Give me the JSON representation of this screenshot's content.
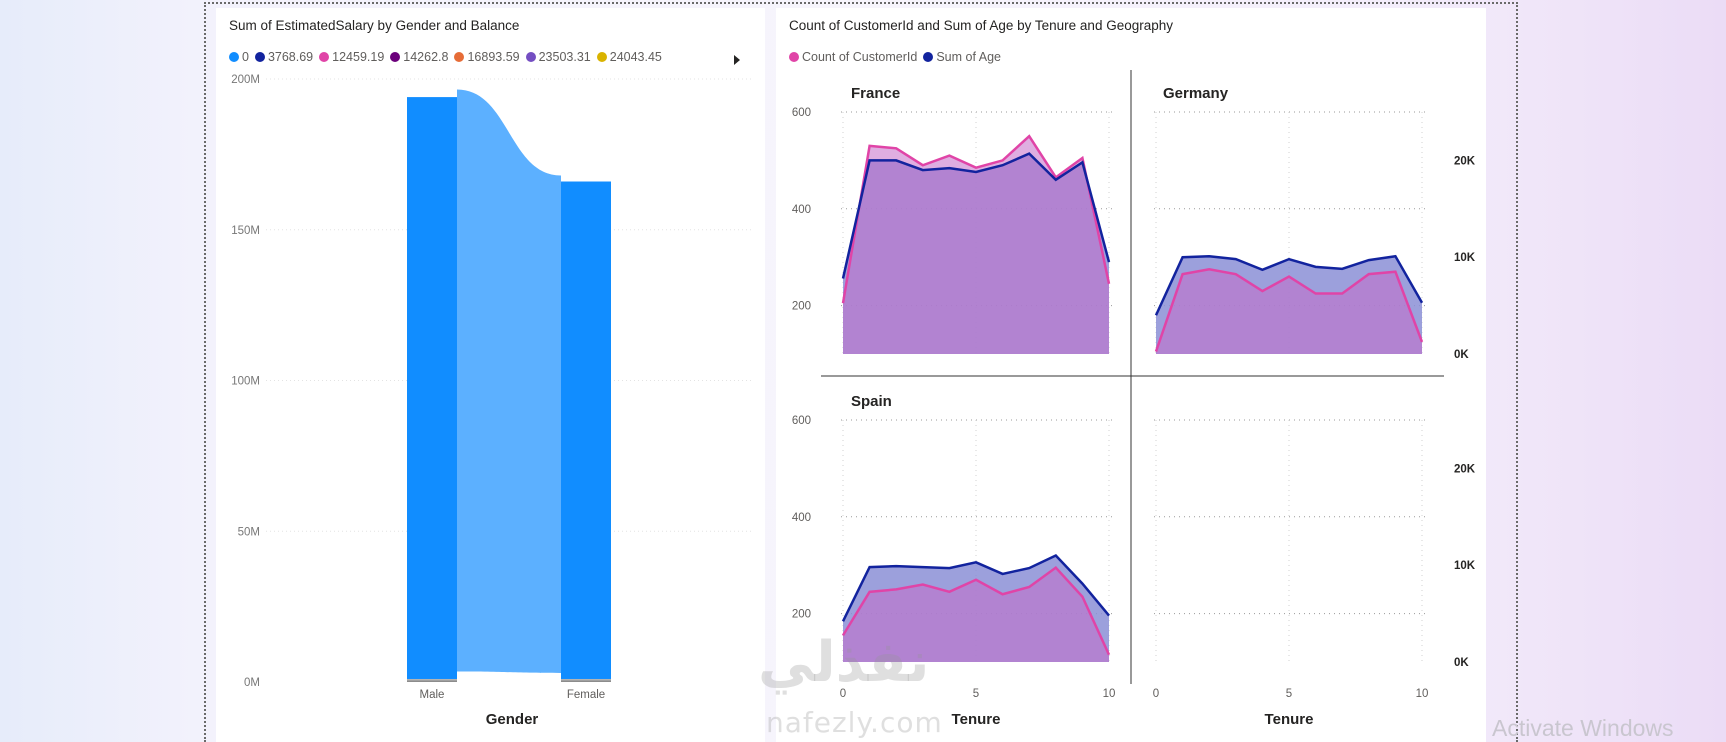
{
  "watermark": {
    "activate": "Activate Windows",
    "logo_arabic": "نفذلي",
    "logo_latin": "nafezly.com"
  },
  "left_visual": {
    "title": "Sum of EstimatedSalary by Gender and Balance",
    "legend": [
      {
        "label": "0",
        "color": "#118dff"
      },
      {
        "label": "3768.69",
        "color": "#12239e"
      },
      {
        "label": "12459.19",
        "color": "#e044a7"
      },
      {
        "label": "14262.8",
        "color": "#6b007b"
      },
      {
        "label": "16893.59",
        "color": "#e66c37"
      },
      {
        "label": "23503.31",
        "color": "#744ec2"
      },
      {
        "label": "24043.45",
        "color": "#d9b300"
      }
    ]
  },
  "right_visual": {
    "title": "Count of CustomerId and Sum of Age by Tenure and Geography",
    "legend": [
      {
        "label": "Count of CustomerId",
        "color": "#e044a7"
      },
      {
        "label": "Sum of Age",
        "color": "#12239e"
      }
    ]
  },
  "chart_data": [
    {
      "type": "bar",
      "title": "Sum of EstimatedSalary by Gender and Balance",
      "xlabel": "Gender",
      "ylabel": "",
      "categories": [
        "Male",
        "Female"
      ],
      "ylim": [
        0,
        200000000
      ],
      "yticks": [
        "0M",
        "50M",
        "100M",
        "150M",
        "200M"
      ],
      "series": [
        {
          "name": "0",
          "values": [
            193000000,
            165000000
          ]
        },
        {
          "name": "3768.69",
          "values": [
            500000,
            500000
          ]
        },
        {
          "name": "23503.31",
          "values": [
            500000,
            500000
          ]
        }
      ],
      "totals": [
        196500000,
        168000000
      ]
    },
    {
      "type": "area",
      "title": "Count of CustomerId and Sum of Age by Tenure and Geography",
      "xlabel": "Tenure",
      "x": [
        0,
        1,
        2,
        3,
        4,
        5,
        6,
        7,
        8,
        9,
        10
      ],
      "xticks": [
        "0",
        "5",
        "10"
      ],
      "left_axis": {
        "range": [
          100,
          600
        ],
        "ticks": [
          "200",
          "400",
          "600"
        ]
      },
      "right_axis": {
        "range": [
          0,
          25000
        ],
        "ticks": [
          "0K",
          "10K",
          "20K"
        ]
      },
      "panels": [
        {
          "name": "France",
          "count_customerid": [
            205,
            530,
            525,
            490,
            510,
            485,
            500,
            550,
            465,
            505,
            245
          ],
          "sum_age": [
            7800,
            20000,
            20000,
            19000,
            19200,
            18800,
            19500,
            20700,
            18000,
            19800,
            9500
          ]
        },
        {
          "name": "Germany",
          "count_customerid": [
            105,
            265,
            275,
            265,
            230,
            260,
            225,
            225,
            265,
            270,
            125
          ],
          "sum_age": [
            4000,
            10000,
            10100,
            9800,
            8700,
            9800,
            9000,
            8800,
            9700,
            10100,
            5300
          ]
        },
        {
          "name": "Spain",
          "count_customerid": [
            155,
            245,
            250,
            260,
            245,
            270,
            240,
            255,
            295,
            235,
            115
          ],
          "sum_age": [
            4200,
            9800,
            9900,
            9800,
            9700,
            10300,
            9100,
            9700,
            11000,
            8100,
            4800
          ]
        }
      ]
    }
  ]
}
